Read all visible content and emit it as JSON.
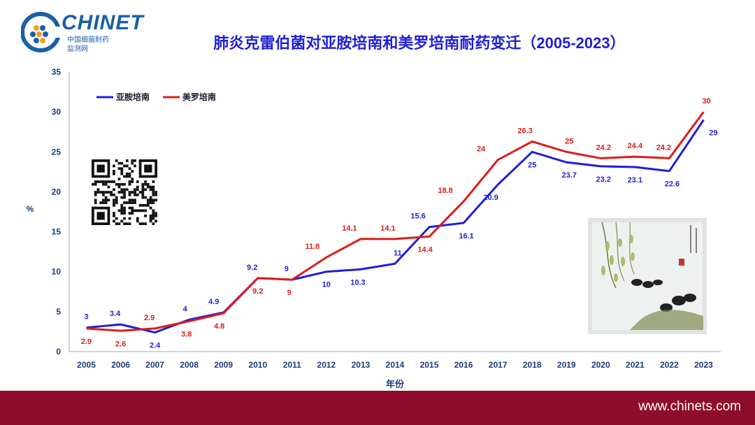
{
  "header": {
    "logo_text": "CHINET",
    "logo_sub1": "中国细菌耐药",
    "logo_sub2": "监测网",
    "title": "肺炎克雷伯菌对亚胺培南和美罗培南耐药变迁（2005-2023）"
  },
  "footer": {
    "url": "www.chinets.com"
  },
  "colors": {
    "series1": "#1f1fd8",
    "series2": "#e01b1b",
    "axis_text": "#1a3d7c",
    "footer_bg": "#8e0d2c"
  },
  "chart_data": {
    "type": "line",
    "title": "肺炎克雷伯菌对亚胺培南和美罗培南耐药变迁（2005-2023）",
    "xlabel": "年份",
    "ylabel": "%",
    "ylim": [
      0,
      35
    ],
    "yticks": [
      0,
      5,
      10,
      15,
      20,
      25,
      30,
      35
    ],
    "grid": false,
    "legend_position": "top-left",
    "x": [
      "2005",
      "2006",
      "2007",
      "2008",
      "2009",
      "2010",
      "2011",
      "2012",
      "2013",
      "2014",
      "2015",
      "2016",
      "2017",
      "2018",
      "2019",
      "2020",
      "2021",
      "2022",
      "2023"
    ],
    "series": [
      {
        "name": "亚胺培南",
        "color": "#1f1fd8",
        "values": [
          3,
          3.4,
          2.4,
          4,
          4.9,
          9.2,
          9,
          10,
          10.3,
          11,
          15.6,
          16.1,
          20.9,
          25,
          23.7,
          23.2,
          23.1,
          22.6,
          29
        ],
        "labels": [
          "3",
          "3.4",
          "2.4",
          "4",
          "4.9",
          "9.2",
          "9",
          "10",
          "10.3",
          "11",
          "15.6",
          "16.1",
          "20.9",
          "25",
          "23.7",
          "23.2",
          "23.1",
          "22.6",
          "29"
        ]
      },
      {
        "name": "美罗培南",
        "color": "#e01b1b",
        "values": [
          2.9,
          2.6,
          2.9,
          3.8,
          4.8,
          9.2,
          9,
          11.8,
          14.1,
          14.1,
          14.4,
          18.8,
          24,
          26.3,
          25,
          24.2,
          24.4,
          24.2,
          30
        ],
        "labels": [
          "2.9",
          "2.6",
          "2.9",
          "3.8",
          "4.8",
          "9.2",
          "9",
          "11.8",
          "14.1",
          "14.1",
          "14.4",
          "18.8",
          "24",
          "26.3",
          "25",
          "24.2",
          "24.4",
          "24.2",
          "30"
        ]
      }
    ]
  }
}
